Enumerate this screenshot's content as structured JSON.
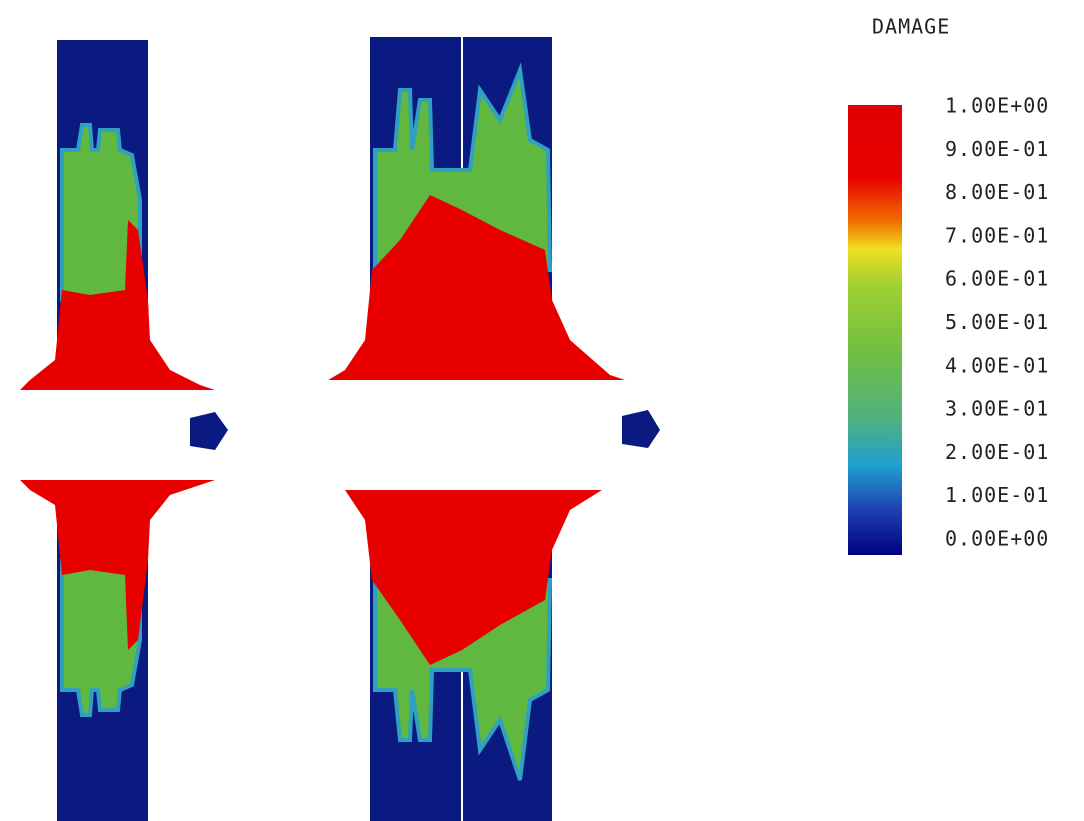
{
  "legend": {
    "title": "DAMAGE",
    "labels": [
      "1.00E+00",
      "9.00E-01",
      "8.00E-01",
      "7.00E-01",
      "6.00E-01",
      "5.00E-01",
      "4.00E-01",
      "3.00E-01",
      "2.00E-01",
      "1.00E-01",
      "0.00E+00"
    ]
  }
}
